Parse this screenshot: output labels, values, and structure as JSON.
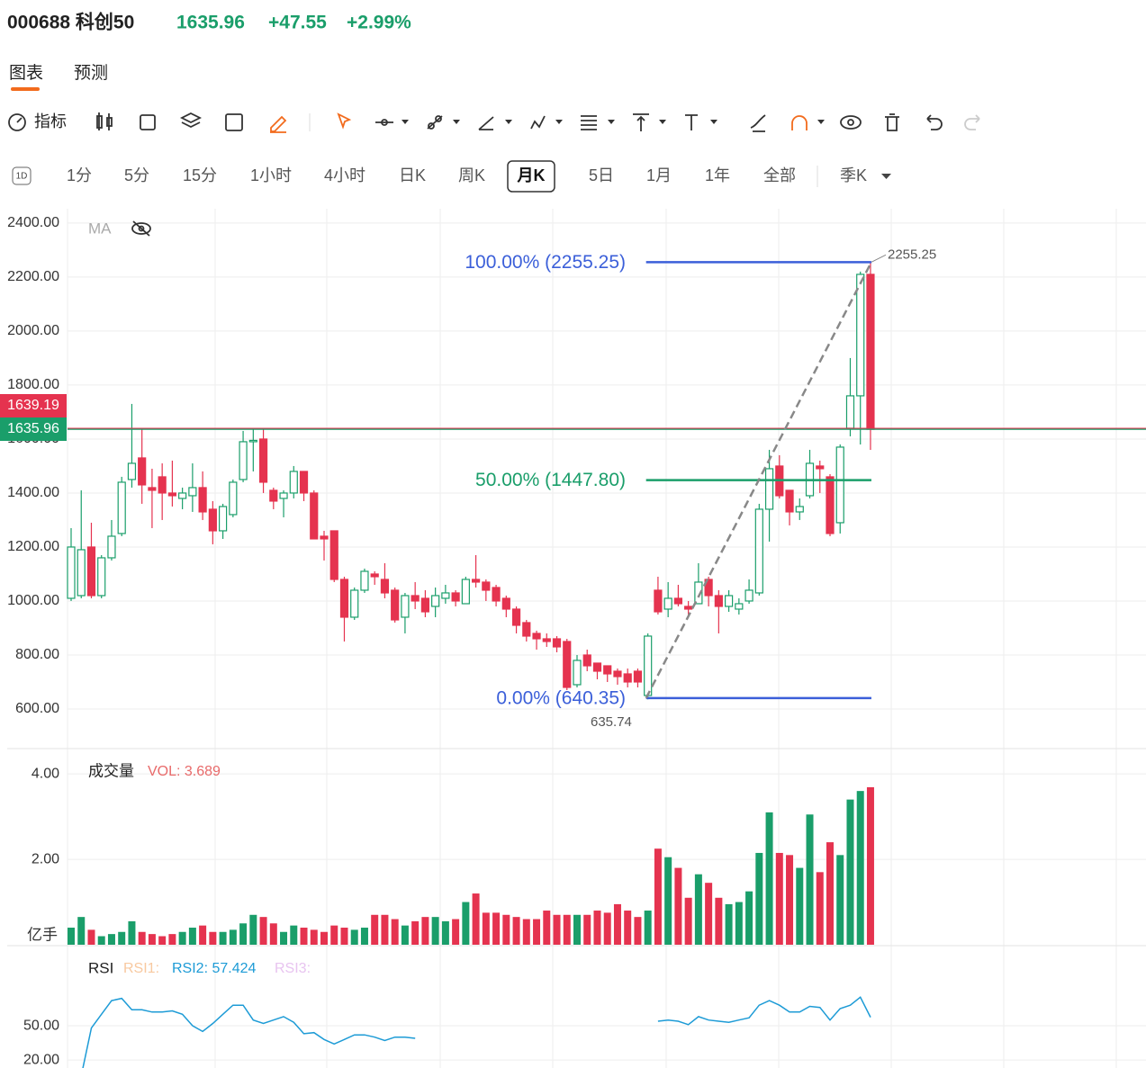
{
  "header": {
    "symbol": "000688 科创50",
    "price": "1635.96",
    "change": "+47.55",
    "change_pct": "+2.99%"
  },
  "tabs": [
    "图表",
    "预测"
  ],
  "toolbar": {
    "indicator": "指标"
  },
  "timeframes": {
    "items": [
      "1分",
      "5分",
      "15分",
      "1小时",
      "4小时",
      "日K",
      "周K",
      "月K",
      "5日",
      "1月",
      "1年",
      "全部"
    ],
    "selected_index": 7,
    "badge": "1D",
    "extra": "季K"
  },
  "chart_data": [
    {
      "type": "candlestick",
      "legend": "MA",
      "up_color": "#1a9e6a",
      "down_color": "#e5334f",
      "grid": true,
      "ylim": [
        460,
        2453
      ],
      "yticks": [
        {
          "value": 600,
          "label": "600.00"
        },
        {
          "value": 800,
          "label": "800.00"
        },
        {
          "value": 1000,
          "label": "1000.00"
        },
        {
          "value": 1200,
          "label": "1200.00"
        },
        {
          "value": 1400,
          "label": "1400.00"
        },
        {
          "value": 1600,
          "label": "1600.00"
        },
        {
          "value": 1800,
          "label": "1800.00"
        },
        {
          "value": 2000,
          "label": "2000.00"
        },
        {
          "value": 2200,
          "label": "2200.00"
        },
        {
          "value": 2400,
          "label": "2400.00"
        }
      ],
      "open": [
        1010,
        1020,
        1200,
        1020,
        1160,
        1250,
        1450,
        1530,
        1420,
        1460,
        1400,
        1380,
        1390,
        1420,
        1340,
        1260,
        1320,
        1450,
        1590,
        1600,
        1410,
        1380,
        1400,
        1480,
        1400,
        1240,
        1260,
        1080,
        940,
        1040,
        1100,
        1080,
        1040,
        940,
        1020,
        1010,
        980,
        1010,
        1030,
        990,
        1080,
        1070,
        1050,
        1010,
        970,
        920,
        880,
        860,
        860,
        850,
        690,
        800,
        770,
        760,
        740,
        730,
        740,
        650,
        1040,
        970,
        1010,
        980,
        990,
        1080,
        1020,
        980,
        970,
        1000,
        1030,
        1340,
        1500,
        1410,
        1330,
        1390,
        1500,
        1460,
        1290,
        1640,
        1760,
        2210
      ],
      "high": [
        1270,
        1410,
        1290,
        1170,
        1300,
        1460,
        1730,
        1640,
        1490,
        1510,
        1520,
        1420,
        1510,
        1480,
        1370,
        1360,
        1450,
        1630,
        1640,
        1640,
        1420,
        1410,
        1500,
        1480,
        1410,
        1260,
        1260,
        1090,
        1050,
        1120,
        1110,
        1140,
        1050,
        1030,
        1070,
        1040,
        1050,
        1060,
        1040,
        1090,
        1170,
        1080,
        1060,
        1020,
        980,
        930,
        890,
        880,
        870,
        860,
        800,
        820,
        770,
        760,
        750,
        750,
        750,
        880,
        1090,
        1070,
        1060,
        1000,
        1140,
        1090,
        1040,
        1040,
        1010,
        1080,
        1360,
        1560,
        1540,
        1410,
        1380,
        1560,
        1520,
        1470,
        1580,
        1900,
        2220,
        2255.25
      ],
      "low": [
        1000,
        1010,
        1010,
        1010,
        1150,
        1240,
        1420,
        1360,
        1270,
        1300,
        1350,
        1340,
        1330,
        1300,
        1210,
        1230,
        1310,
        1440,
        1480,
        1400,
        1340,
        1310,
        1380,
        1370,
        1230,
        1150,
        1070,
        850,
        930,
        1030,
        1060,
        1010,
        920,
        880,
        970,
        940,
        940,
        990,
        980,
        990,
        1050,
        1000,
        980,
        940,
        880,
        850,
        820,
        830,
        810,
        670,
        680,
        740,
        710,
        700,
        690,
        680,
        680,
        635.74,
        950,
        940,
        980,
        940,
        990,
        980,
        880,
        960,
        950,
        990,
        1020,
        1220,
        1380,
        1280,
        1300,
        1380,
        1400,
        1240,
        1250,
        1610,
        1580,
        1560
      ],
      "close": [
        1200,
        1190,
        1020,
        1160,
        1240,
        1440,
        1510,
        1430,
        1410,
        1400,
        1390,
        1400,
        1420,
        1330,
        1260,
        1350,
        1440,
        1590,
        1595,
        1440,
        1370,
        1400,
        1480,
        1400,
        1230,
        1230,
        1080,
        940,
        1040,
        1110,
        1090,
        1030,
        930,
        1020,
        1000,
        960,
        1020,
        1030,
        1000,
        1080,
        1070,
        1040,
        1000,
        970,
        910,
        870,
        860,
        850,
        830,
        680,
        780,
        760,
        740,
        730,
        720,
        700,
        700,
        870,
        960,
        1010,
        990,
        970,
        1070,
        1020,
        980,
        1020,
        990,
        1040,
        1340,
        1490,
        1390,
        1330,
        1350,
        1510,
        1490,
        1250,
        1570,
        1760,
        2210,
        1635.96
      ],
      "price_lines": [
        {
          "value": 1639.19,
          "color": "#e5334f"
        },
        {
          "value": 1635.96,
          "color": "#1a9e6a"
        }
      ],
      "fib_levels": [
        {
          "label": "100.00% (2255.25)",
          "value": 2255.25,
          "color": "#3b5fd9"
        },
        {
          "label": "50.00% (1447.80)",
          "value": 1447.8,
          "color": "#1a9e6a"
        },
        {
          "label": "0.00% (640.35)",
          "value": 640.35,
          "color": "#3b5fd9"
        }
      ],
      "trendline": {
        "from_index": 57,
        "to_index": 79,
        "color": "#888888"
      },
      "high_label": 2255.25,
      "low_label": 635.74
    },
    {
      "type": "bar",
      "legend": "成交量",
      "value_label": "VOL: 3.689",
      "unit": "亿手",
      "up_color": "#1a9e6a",
      "down_color": "#e5334f",
      "ylim": [
        0,
        4.53
      ],
      "yticks": [
        {
          "value": 2,
          "label": "2.00"
        },
        {
          "value": 4,
          "label": "4.00"
        }
      ],
      "values": [
        0.4,
        0.65,
        0.35,
        0.2,
        0.25,
        0.3,
        0.55,
        0.3,
        0.25,
        0.2,
        0.25,
        0.3,
        0.4,
        0.45,
        0.3,
        0.3,
        0.35,
        0.5,
        0.7,
        0.65,
        0.5,
        0.3,
        0.45,
        0.4,
        0.35,
        0.3,
        0.45,
        0.4,
        0.35,
        0.4,
        0.7,
        0.7,
        0.6,
        0.45,
        0.55,
        0.65,
        0.65,
        0.55,
        0.6,
        1.0,
        1.2,
        0.75,
        0.75,
        0.7,
        0.65,
        0.6,
        0.6,
        0.8,
        0.7,
        0.7,
        0.7,
        0.7,
        0.8,
        0.75,
        0.95,
        0.8,
        0.65,
        0.8,
        2.25,
        2.05,
        1.8,
        1.1,
        1.65,
        1.45,
        1.1,
        0.95,
        1.0,
        1.25,
        2.15,
        3.1,
        2.15,
        2.1,
        1.8,
        3.05,
        1.7,
        2.4,
        2.1,
        3.4,
        3.6,
        3.689
      ]
    },
    {
      "type": "line",
      "legend": "RSI",
      "ylim": [
        13,
        117
      ],
      "yticks": [
        {
          "value": 20,
          "label": "20.00"
        },
        {
          "value": 50,
          "label": "50.00"
        }
      ],
      "series": [
        {
          "name": "RSI1:",
          "color": "#f8c9a0",
          "values": []
        },
        {
          "name": "RSI2: 57.424",
          "color": "#1d9bd6",
          "values": [
            null,
            6,
            48,
            60,
            72,
            74,
            64,
            64,
            62,
            62,
            63,
            60,
            50,
            45,
            52,
            60,
            68,
            68,
            55,
            52,
            55,
            58,
            53,
            43,
            44,
            38,
            34,
            38,
            42,
            42,
            40,
            37,
            40,
            40,
            39,
            null,
            null,
            null,
            null,
            null,
            null,
            null,
            null,
            null,
            null,
            null,
            null,
            null,
            null,
            null,
            null,
            null,
            null,
            null,
            null,
            null,
            null,
            null,
            54,
            55,
            54,
            51,
            58,
            55,
            54,
            53,
            55,
            57,
            68,
            72,
            68,
            62,
            62,
            67,
            66,
            55,
            65,
            68,
            75,
            57.424
          ]
        },
        {
          "name": "RSI3:",
          "color": "#e8c4f0",
          "values": []
        }
      ]
    }
  ]
}
